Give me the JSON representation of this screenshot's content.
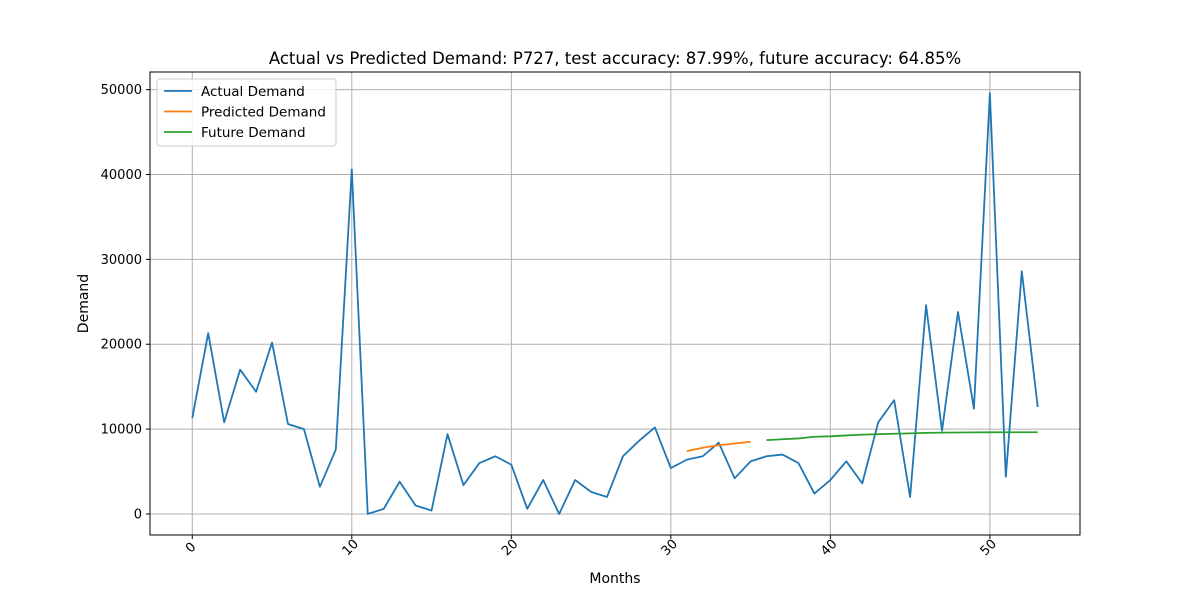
{
  "chart_data": {
    "type": "line",
    "title": "Actual vs Predicted Demand: P727, test accuracy: 87.99%, future accuracy: 64.85%",
    "xlabel": "Months",
    "ylabel": "Demand",
    "xlim": [
      -2.65,
      55.65
    ],
    "ylim": [
      -2480,
      52080
    ],
    "xticks": [
      0,
      10,
      20,
      30,
      40,
      50
    ],
    "yticks": [
      0,
      10000,
      20000,
      30000,
      40000,
      50000
    ],
    "grid": true,
    "legend_position": "top-left",
    "series": [
      {
        "name": "Actual Demand",
        "color": "#1f77b4",
        "x": [
          0,
          1,
          2,
          3,
          4,
          5,
          6,
          7,
          8,
          9,
          10,
          11,
          12,
          13,
          14,
          15,
          16,
          17,
          18,
          19,
          20,
          21,
          22,
          23,
          24,
          25,
          26,
          27,
          28,
          29,
          30,
          31,
          32,
          33,
          34,
          35,
          36,
          37,
          38,
          39,
          40,
          41,
          42,
          43,
          44,
          45,
          46,
          47,
          48,
          49,
          50,
          51,
          52,
          53
        ],
        "y": [
          11300,
          21300,
          10800,
          17000,
          14400,
          20200,
          10600,
          10000,
          3200,
          7600,
          40600,
          0,
          600,
          3800,
          1000,
          400,
          9400,
          3400,
          6000,
          6800,
          5800,
          600,
          4000,
          0,
          4000,
          2600,
          2000,
          6800,
          8600,
          10200,
          5400,
          6400,
          6800,
          8400,
          4200,
          6200,
          6800,
          7000,
          6000,
          2400,
          4000,
          6200,
          3600,
          10800,
          13400,
          2000,
          24600,
          9800,
          23800,
          12400,
          49600,
          4400,
          28600,
          12600
        ]
      },
      {
        "name": "Predicted Demand",
        "color": "#ff7f0e",
        "x": [
          31,
          32,
          33,
          34,
          35
        ],
        "y": [
          7400,
          7800,
          8100,
          8300,
          8500
        ]
      },
      {
        "name": "Future Demand",
        "color": "#2ca02c",
        "x": [
          36,
          37,
          38,
          39,
          40,
          41,
          42,
          43,
          44,
          45,
          46,
          47,
          48,
          49,
          50,
          51,
          52,
          53
        ],
        "y": [
          8700,
          8800,
          8900,
          9100,
          9150,
          9250,
          9350,
          9400,
          9450,
          9500,
          9550,
          9580,
          9600,
          9610,
          9620,
          9630,
          9630,
          9630
        ]
      }
    ]
  }
}
